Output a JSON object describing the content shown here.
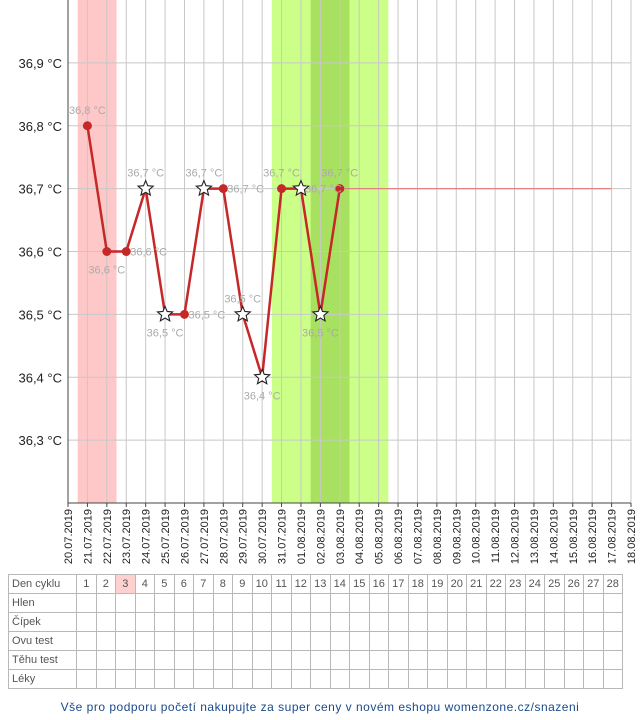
{
  "chart_data": {
    "type": "line",
    "y_ticks": [
      "36,3 °C",
      "36,4 °C",
      "36,5 °C",
      "36,6 °C",
      "36,7 °C",
      "36,8 °C",
      "36,9 °C"
    ],
    "ylim": [
      36.2,
      37.0
    ],
    "x_dates": [
      "20.07.2019",
      "21.07.2019",
      "22.07.2019",
      "23.07.2019",
      "24.07.2019",
      "25.07.2019",
      "26.07.2019",
      "27.07.2019",
      "28.07.2019",
      "29.07.2019",
      "30.07.2019",
      "31.07.2019",
      "01.08.2019",
      "02.08.2019",
      "03.08.2019",
      "04.08.2019",
      "05.08.2019",
      "06.08.2019",
      "07.08.2019",
      "08.08.2019",
      "09.08.2019",
      "10.08.2019",
      "11.08.2019",
      "12.08.2019",
      "13.08.2019",
      "14.08.2019",
      "15.08.2019",
      "16.08.2019",
      "17.08.2019",
      "18.08.2019"
    ],
    "series": [
      {
        "color": "#c62828",
        "points": [
          {
            "date": "21.07.2019",
            "value": 36.8,
            "label": "36,8 °C",
            "marker": "dot"
          },
          {
            "date": "22.07.2019",
            "value": 36.6,
            "label": "36,6 °C",
            "marker": "dot"
          },
          {
            "date": "23.07.2019",
            "value": 36.6,
            "label": "36,6 °C",
            "marker": "dot"
          },
          {
            "date": "24.07.2019",
            "value": 36.7,
            "label": "36,7 °C",
            "marker": "star"
          },
          {
            "date": "25.07.2019",
            "value": 36.5,
            "label": "36,5 °C",
            "marker": "star"
          },
          {
            "date": "26.07.2019",
            "value": 36.5,
            "label": "36,5 °C",
            "marker": "dot"
          },
          {
            "date": "27.07.2019",
            "value": 36.7,
            "label": "36,7 °C",
            "marker": "star"
          },
          {
            "date": "28.07.2019",
            "value": 36.7,
            "label": "36,7 °C",
            "marker": "dot"
          },
          {
            "date": "29.07.2019",
            "value": 36.5,
            "label": "36,5 °C",
            "marker": "star"
          },
          {
            "date": "30.07.2019",
            "value": 36.4,
            "label": "36,4 °C",
            "marker": "star"
          },
          {
            "date": "31.07.2019",
            "value": 36.7,
            "label": "36,7 °C",
            "marker": "dot"
          },
          {
            "date": "01.08.2019",
            "value": 36.7,
            "label": "36,7 °C",
            "marker": "star"
          },
          {
            "date": "02.08.2019",
            "value": 36.5,
            "label": "36,5 °C",
            "marker": "star"
          },
          {
            "date": "03.08.2019",
            "value": 36.7,
            "label": "36,7 °C",
            "marker": "dot"
          }
        ]
      }
    ],
    "projection": {
      "from": "03.08.2019",
      "to": "17.08.2019",
      "value": 36.7,
      "color": "#e08080"
    },
    "shaded_bands": [
      {
        "from": "21.07.2019",
        "to": "22.07.2019",
        "color": "#ffc8c8"
      },
      {
        "from": "31.07.2019",
        "to": "05.08.2019",
        "color": "#ccff88"
      },
      {
        "from": "02.08.2019",
        "to": "03.08.2019",
        "color": "#a8e060"
      }
    ],
    "grid": true
  },
  "table": {
    "rows": [
      {
        "label": "Den cyklu",
        "cells": [
          "1",
          "2",
          "3",
          "4",
          "5",
          "6",
          "7",
          "8",
          "9",
          "10",
          "11",
          "12",
          "13",
          "14",
          "15",
          "16",
          "17",
          "18",
          "19",
          "20",
          "21",
          "22",
          "23",
          "24",
          "25",
          "26",
          "27",
          "28"
        ],
        "highlight_index": 2
      },
      {
        "label": "Hlen",
        "cells": []
      },
      {
        "label": "Čípek",
        "cells": []
      },
      {
        "label": "Ovu test",
        "cells": []
      },
      {
        "label": "Těhu test",
        "cells": []
      },
      {
        "label": "Léky",
        "cells": []
      }
    ]
  },
  "footer": {
    "text": "Vše pro podporu početí nakupujte za super ceny v novém eshopu womenzone.cz/snazeni"
  }
}
